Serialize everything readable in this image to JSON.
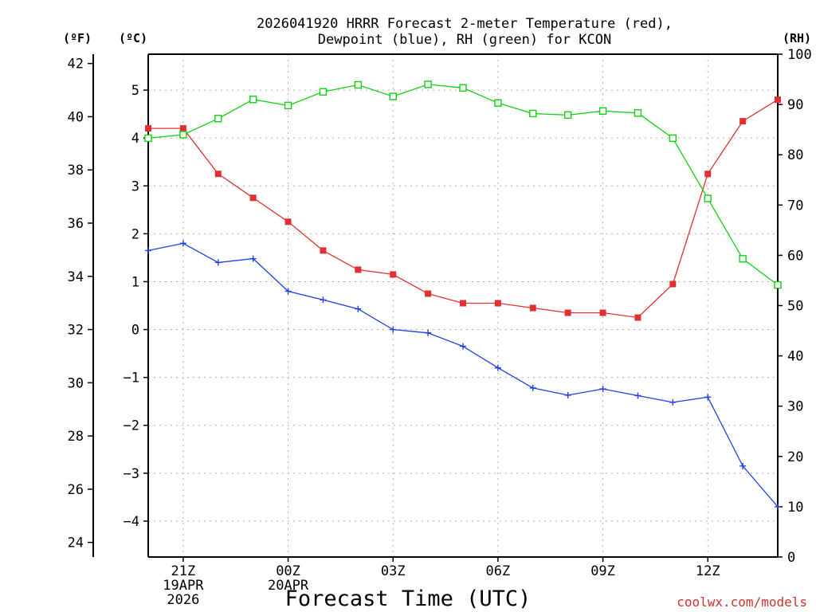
{
  "chart_data": {
    "type": "line",
    "title_lines": [
      "2026041920 HRRR Forecast 2-meter Temperature (red),",
      "Dewpoint (blue), RH (green) for KCON"
    ],
    "xlabel": "Forecast Time (UTC)",
    "watermark": "coolwx.com/models",
    "unit_left_f": "(ºF)",
    "unit_left_c": "(ºC)",
    "unit_right": "(RH)",
    "x_hours": [
      0,
      1,
      2,
      3,
      4,
      5,
      6,
      7,
      8,
      9,
      10,
      11,
      12,
      13,
      14,
      15,
      16,
      17,
      18
    ],
    "x_ticks": [
      {
        "hour": 1,
        "label": "21Z",
        "sub": [
          "19APR",
          "2026"
        ]
      },
      {
        "hour": 4,
        "label": "00Z",
        "sub": [
          "20APR"
        ]
      },
      {
        "hour": 7,
        "label": "03Z",
        "sub": []
      },
      {
        "hour": 10,
        "label": "06Z",
        "sub": []
      },
      {
        "hour": 13,
        "label": "09Z",
        "sub": []
      },
      {
        "hour": 16,
        "label": "12Z",
        "sub": []
      }
    ],
    "c_ticks": [
      {
        "v": 5,
        "label": "5"
      },
      {
        "v": 4,
        "label": "4"
      },
      {
        "v": 3,
        "label": "3"
      },
      {
        "v": 2,
        "label": "2"
      },
      {
        "v": 1,
        "label": "1"
      },
      {
        "v": 0,
        "label": "0"
      },
      {
        "v": -1,
        "label": "−1"
      },
      {
        "v": -2,
        "label": "−2"
      },
      {
        "v": -3,
        "label": "−3"
      },
      {
        "v": -4,
        "label": "−4"
      }
    ],
    "f_ticks": [
      42,
      40,
      38,
      36,
      34,
      32,
      30,
      28,
      26,
      24
    ],
    "rh_ticks": [
      100,
      90,
      80,
      70,
      60,
      50,
      40,
      30,
      20,
      10,
      0
    ],
    "c_range": [
      -4.75,
      5.75
    ],
    "rh_range": [
      0,
      100
    ],
    "series": [
      {
        "name": "Temperature",
        "unit": "°C",
        "color": "#e03030",
        "marker": "filled-square",
        "values": [
          4.2,
          4.2,
          3.25,
          2.75,
          2.25,
          1.65,
          1.25,
          1.15,
          0.75,
          0.55,
          0.55,
          0.45,
          0.35,
          0.35,
          0.25,
          0.95,
          3.25,
          4.35,
          4.8
        ]
      },
      {
        "name": "Dewpoint",
        "unit": "°C",
        "color": "#2040e0",
        "marker": "plus",
        "values": [
          1.65,
          1.8,
          1.4,
          1.48,
          0.8,
          0.62,
          0.43,
          0.0,
          -0.07,
          -0.35,
          -0.8,
          -1.22,
          -1.37,
          -1.24,
          -1.38,
          -1.52,
          -1.41,
          -2.85,
          -3.7
        ]
      },
      {
        "name": "RH",
        "unit": "%",
        "color": "#10d010",
        "marker": "open-square",
        "values": [
          83.3,
          84.0,
          87.2,
          91.0,
          89.8,
          92.5,
          93.9,
          91.6,
          94.0,
          93.3,
          90.3,
          88.2,
          87.9,
          88.7,
          88.3,
          83.3,
          71.3,
          59.3,
          54.1
        ]
      }
    ]
  }
}
